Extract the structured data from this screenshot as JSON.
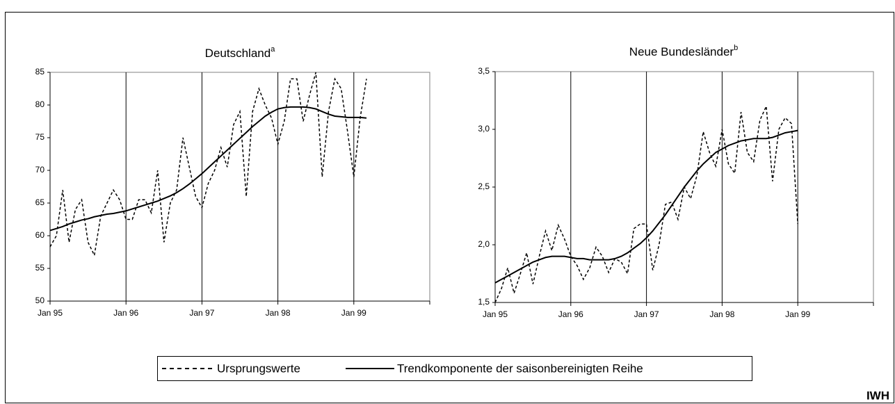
{
  "chart_data": [
    {
      "type": "line",
      "title": "Deutschland",
      "title_superscript": "a",
      "categories": [
        "Jan 95",
        null,
        null,
        null,
        null,
        null,
        null,
        null,
        null,
        null,
        null,
        null,
        "Jan 96",
        null,
        null,
        null,
        null,
        null,
        null,
        null,
        null,
        null,
        null,
        null,
        "Jan 97",
        null,
        null,
        null,
        null,
        null,
        null,
        null,
        null,
        null,
        null,
        null,
        "Jan 98",
        null,
        null,
        null,
        null,
        null,
        null,
        null,
        null,
        null,
        null,
        null,
        "Jan 99",
        null,
        null,
        null,
        null,
        null,
        null,
        null,
        null,
        null,
        null,
        null,
        null
      ],
      "series": [
        {
          "name": "Ursprungswerte",
          "color": "#000000",
          "line_style": "dashed",
          "values": [
            58.3,
            60,
            67,
            59,
            64,
            65.5,
            59,
            57,
            63,
            65,
            67,
            65.5,
            62.5,
            62.5,
            65.5,
            65.5,
            63.5,
            70,
            59,
            65,
            67,
            75,
            70.5,
            66,
            64.3,
            68,
            70,
            73.5,
            70.5,
            77,
            79,
            66,
            79,
            82.5,
            80,
            78,
            74,
            77.5,
            84,
            84,
            77.5,
            81.5,
            85,
            69,
            79,
            84,
            82.5,
            76,
            69,
            78,
            84,
            null,
            null,
            null,
            null,
            null,
            null,
            null,
            null,
            null,
            null
          ]
        },
        {
          "name": "Trendkomponente der saisonbereinigten Reihe",
          "color": "#000000",
          "line_style": "solid",
          "values": [
            60.8,
            61.1,
            61.4,
            61.8,
            62.1,
            62.4,
            62.6,
            62.9,
            63.1,
            63.3,
            63.4,
            63.6,
            63.8,
            64.1,
            64.4,
            64.7,
            65.0,
            65.3,
            65.7,
            66.1,
            66.6,
            67.2,
            67.9,
            68.7,
            69.5,
            70.4,
            71.3,
            72.2,
            73.1,
            74.0,
            74.9,
            75.8,
            76.7,
            77.5,
            78.3,
            78.9,
            79.4,
            79.6,
            79.7,
            79.7,
            79.7,
            79.6,
            79.4,
            79.0,
            78.6,
            78.3,
            78.2,
            78.1,
            78.1,
            78.1,
            78.0,
            null,
            null,
            null,
            null,
            null,
            null,
            null,
            null,
            null,
            null
          ]
        }
      ],
      "ylim": [
        50,
        85
      ],
      "yticks": [
        50,
        55,
        60,
        65,
        70,
        75,
        80,
        85
      ],
      "x_grid": true
    },
    {
      "type": "line",
      "title": "Neue Bundesländer",
      "title_superscript": "b",
      "categories": [
        "Jan 95",
        null,
        null,
        null,
        null,
        null,
        null,
        null,
        null,
        null,
        null,
        null,
        "Jan 96",
        null,
        null,
        null,
        null,
        null,
        null,
        null,
        null,
        null,
        null,
        null,
        "Jan 97",
        null,
        null,
        null,
        null,
        null,
        null,
        null,
        null,
        null,
        null,
        null,
        "Jan 98",
        null,
        null,
        null,
        null,
        null,
        null,
        null,
        null,
        null,
        null,
        null,
        "Jan 99",
        null,
        null,
        null,
        null,
        null,
        null,
        null,
        null,
        null,
        null,
        null,
        null
      ],
      "series": [
        {
          "name": "Ursprungswerte",
          "color": "#000000",
          "line_style": "dashed",
          "values": [
            1.5,
            1.62,
            1.8,
            1.58,
            1.75,
            1.93,
            1.66,
            1.9,
            2.12,
            1.95,
            2.17,
            2.05,
            1.9,
            1.82,
            1.7,
            1.8,
            1.98,
            1.9,
            1.76,
            1.88,
            1.85,
            1.75,
            2.14,
            2.18,
            2.18,
            1.78,
            2.0,
            2.35,
            2.37,
            2.22,
            2.5,
            2.4,
            2.6,
            2.98,
            2.8,
            2.68,
            3.0,
            2.7,
            2.62,
            3.15,
            2.8,
            2.72,
            3.08,
            3.2,
            2.55,
            3.0,
            3.1,
            3.05,
            2.18,
            null,
            null,
            null,
            null,
            null,
            null,
            null,
            null,
            null,
            null,
            null,
            null
          ]
        },
        {
          "name": "Trendkomponente der saisonbereinigten Reihe",
          "color": "#000000",
          "line_style": "solid",
          "values": [
            1.67,
            1.7,
            1.73,
            1.76,
            1.79,
            1.82,
            1.85,
            1.87,
            1.89,
            1.9,
            1.9,
            1.9,
            1.89,
            1.88,
            1.88,
            1.87,
            1.87,
            1.87,
            1.87,
            1.88,
            1.9,
            1.93,
            1.97,
            2.01,
            2.06,
            2.12,
            2.19,
            2.26,
            2.34,
            2.42,
            2.5,
            2.57,
            2.64,
            2.7,
            2.75,
            2.8,
            2.83,
            2.86,
            2.88,
            2.9,
            2.91,
            2.92,
            2.92,
            2.92,
            2.93,
            2.95,
            2.97,
            2.98,
            2.99,
            null,
            null,
            null,
            null,
            null,
            null,
            null,
            null,
            null,
            null,
            null,
            null
          ]
        }
      ],
      "ylim": [
        1.5,
        3.5
      ],
      "yticks": [
        {
          "value": 1.5,
          "label": "1,5"
        },
        {
          "value": 2,
          "label": "2,0"
        },
        {
          "value": 2.5,
          "label": "2,5"
        },
        {
          "value": 3,
          "label": "3,0"
        },
        {
          "value": 3.5,
          "label": "3,5"
        }
      ],
      "x_grid": true
    }
  ],
  "source": "IWH"
}
